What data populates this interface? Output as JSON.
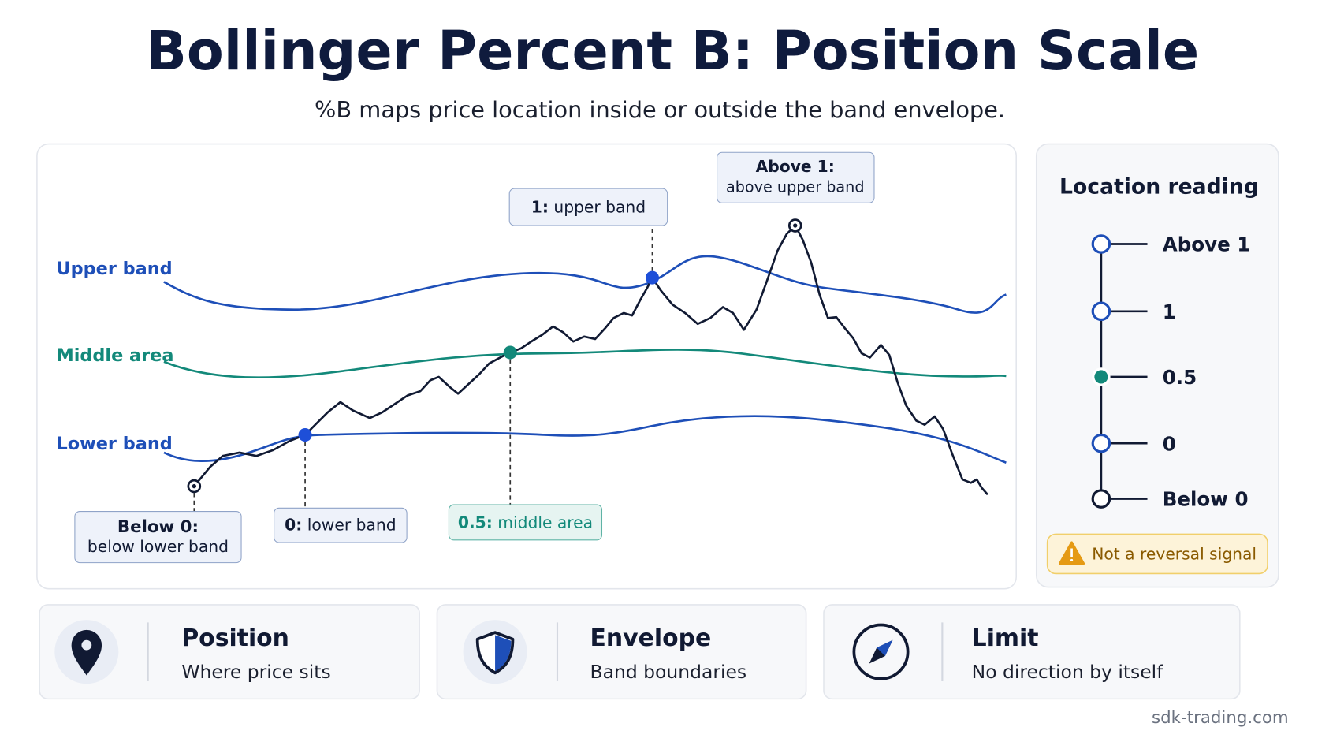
{
  "header": {
    "title": "Bollinger Percent B: Position Scale",
    "subtitle": "%B maps price location inside or outside the band envelope."
  },
  "chart": {
    "band_labels": [
      "Upper band",
      "Middle area",
      "Lower band"
    ],
    "callouts": [
      {
        "key": "Below 0:",
        "text": "below lower band"
      },
      {
        "key": "0:",
        "text": "lower band"
      },
      {
        "key": "0.5:",
        "text": "middle area"
      },
      {
        "key": "1:",
        "text": "upper band"
      },
      {
        "key": "Above 1:",
        "text": "above upper band"
      }
    ]
  },
  "side_panel": {
    "title": "Location reading",
    "scale": [
      "Above 1",
      "1",
      "0.5",
      "0",
      "Below 0"
    ],
    "warning": "Not a reversal signal"
  },
  "cards": [
    {
      "title": "Position",
      "text": "Where price sits"
    },
    {
      "title": "Envelope",
      "text": "Band boundaries"
    },
    {
      "title": "Limit",
      "text": "No direction by itself"
    }
  ],
  "footer": "sdk-trading.com"
}
